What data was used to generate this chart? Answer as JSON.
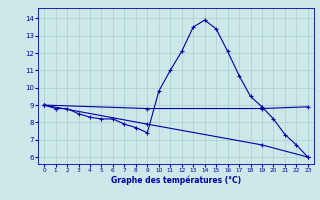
{
  "title": "Graphe des températures (°C)",
  "bg_color": "#cce8e8",
  "grid_color": "#aacece",
  "line_color": "#0000aa",
  "x_ticks": [
    0,
    1,
    2,
    3,
    4,
    5,
    6,
    7,
    8,
    9,
    10,
    11,
    12,
    13,
    14,
    15,
    16,
    17,
    18,
    19,
    20,
    21,
    22,
    23
  ],
  "y_ticks": [
    6,
    7,
    8,
    9,
    10,
    11,
    12,
    13,
    14
  ],
  "ylim": [
    5.6,
    14.6
  ],
  "xlim": [
    -0.5,
    23.5
  ],
  "curve1_x": [
    0,
    1,
    2,
    3,
    4,
    5,
    6,
    7,
    8,
    9,
    10,
    11,
    12,
    13,
    14,
    15,
    16,
    17,
    18,
    19,
    20,
    21,
    22,
    23
  ],
  "curve1_y": [
    9.0,
    8.8,
    8.8,
    8.5,
    8.3,
    8.2,
    8.2,
    7.9,
    7.7,
    7.4,
    9.8,
    11.0,
    12.1,
    13.5,
    13.9,
    13.4,
    12.1,
    10.7,
    9.5,
    8.9,
    8.2,
    7.3,
    6.7,
    6.0
  ],
  "curve2_x": [
    0,
    9,
    19,
    23
  ],
  "curve2_y": [
    9.0,
    8.8,
    8.8,
    8.9
  ],
  "curve3_x": [
    0,
    9,
    19,
    23
  ],
  "curve3_y": [
    9.0,
    7.9,
    6.7,
    6.0
  ]
}
